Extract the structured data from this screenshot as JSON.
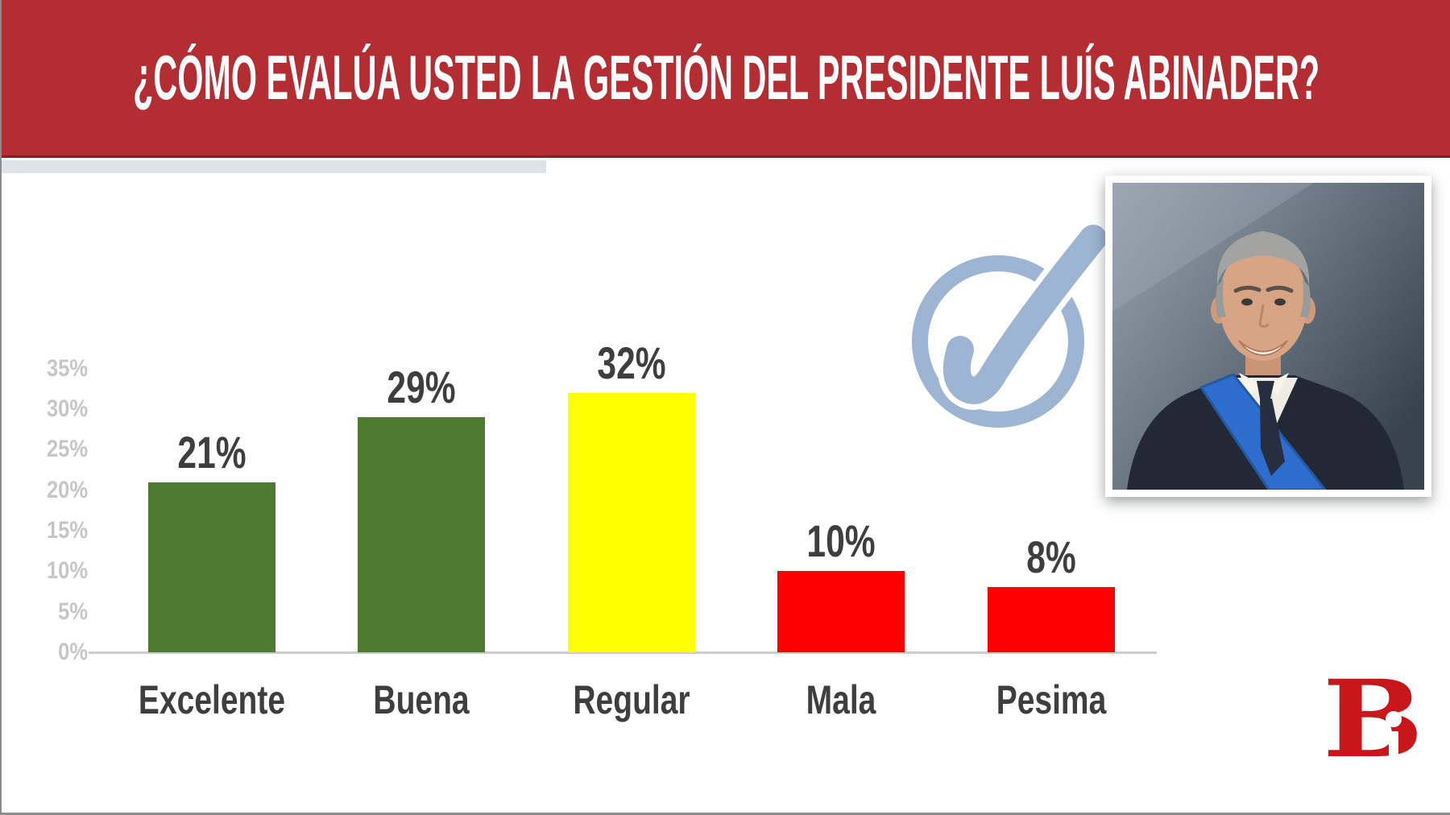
{
  "header": {
    "title": "¿CÓMO EVALÚA USTED LA GESTIÓN DEL PRESIDENTE LUÍS ABINADER?",
    "background_color": "#b32d33",
    "underline_color": "#8e1b21",
    "text_color": "#ffffff"
  },
  "decor": {
    "accent_strip_color": "#dde3e8"
  },
  "chart_data": {
    "type": "bar",
    "title": "¿Cómo evalúa usted la gestión del presidente Luís Abinader?",
    "categories": [
      "Excelente",
      "Buena",
      "Regular",
      "Mala",
      "Pesima"
    ],
    "values": [
      21,
      29,
      32,
      10,
      8
    ],
    "value_labels": [
      "21%",
      "29%",
      "32%",
      "10%",
      "8%"
    ],
    "bar_colors": [
      "#4e7b30",
      "#4e7b30",
      "#ffff00",
      "#ff0000",
      "#ff0000"
    ],
    "y_ticks": [
      "35%",
      "30%",
      "25%",
      "20%",
      "15%",
      "10%",
      "5%",
      "0%"
    ],
    "y_tick_values": [
      35,
      30,
      25,
      20,
      15,
      10,
      5,
      0
    ],
    "ylim": [
      0,
      35
    ],
    "xlabel": "",
    "ylabel": "",
    "grid": false,
    "legend": "none",
    "axis_color": "#cdcdcd",
    "tick_label_color": "#c6c6c6",
    "value_label_color": "#3e3e3e"
  },
  "icons": {
    "check_icon_color": "#9db5d2"
  },
  "portrait": {
    "background_light": "#97a2ac",
    "background_dark": "#39434f",
    "suit_color": "#222835",
    "sash_color": "#2e6cce"
  },
  "logo": {
    "letter_b": "B",
    "letter_i": "i",
    "color": "#c9161b"
  }
}
